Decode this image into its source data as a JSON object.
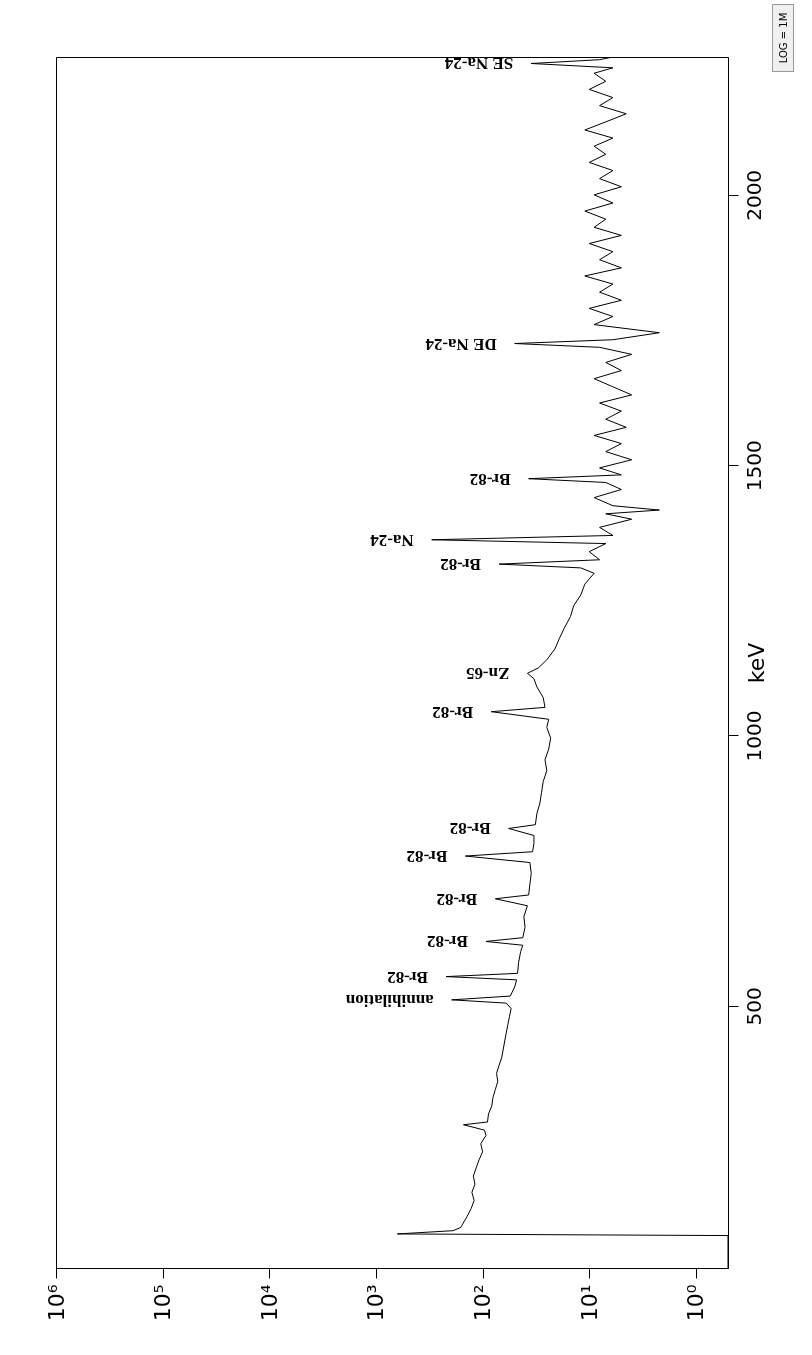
{
  "chart_data": {
    "type": "line",
    "ylabel": "keV",
    "color": "#000000",
    "log": "x",
    "grid": false,
    "ylim": [
      15,
      2255
    ],
    "yticks": [
      500,
      1000,
      1500,
      2000
    ],
    "xlim": [
      1000000,
      0.5
    ],
    "xticks": [
      {
        "value": 1000000,
        "label": "10⁶"
      },
      {
        "value": 100000,
        "label": "10⁵"
      },
      {
        "value": 10000,
        "label": "10⁴"
      },
      {
        "value": 1000,
        "label": "10³"
      },
      {
        "value": 100,
        "label": "10²"
      },
      {
        "value": 10,
        "label": "10¹"
      },
      {
        "value": 1,
        "label": "10⁰"
      }
    ],
    "values": [
      15,
      75,
      78,
      84,
      90,
      100,
      110,
      125,
      140,
      155,
      170,
      185,
      200,
      215,
      230,
      245,
      260,
      270,
      280,
      285,
      300,
      315,
      330,
      345,
      360,
      375,
      390,
      405,
      420,
      435,
      450,
      465,
      480,
      495,
      505,
      511,
      518,
      535,
      548,
      554,
      560,
      580,
      600,
      612,
      619,
      626,
      645,
      665,
      685,
      698,
      705,
      725,
      745,
      765,
      777,
      785,
      800,
      815,
      828,
      835,
      855,
      875,
      895,
      915,
      935,
      955,
      975,
      995,
      1015,
      1030,
      1044,
      1052,
      1070,
      1090,
      1105,
      1115,
      1125,
      1140,
      1160,
      1180,
      1200,
      1220,
      1240,
      1260,
      1280,
      1300,
      1310,
      1317,
      1325,
      1340,
      1355,
      1362,
      1370,
      1385,
      1400,
      1410,
      1417,
      1425,
      1440,
      1455,
      1468,
      1475,
      1482,
      1495,
      1510,
      1525,
      1540,
      1555,
      1570,
      1585,
      1600,
      1615,
      1630,
      1645,
      1660,
      1675,
      1690,
      1705,
      1718,
      1725,
      1732,
      1745,
      1760,
      1775,
      1790,
      1805,
      1820,
      1835,
      1850,
      1865,
      1880,
      1895,
      1910,
      1925,
      1940,
      1955,
      1970,
      1985,
      2000,
      2015,
      2030,
      2045,
      2060,
      2075,
      2090,
      2105,
      2120,
      2135,
      2150,
      2165,
      2180,
      2195,
      2210,
      2225,
      2235,
      2243,
      2250,
      2255
    ],
    "x": [
      0.5,
      0.5,
      630,
      190,
      160,
      150,
      140,
      128,
      120,
      126,
      118,
      122,
      115,
      108,
      100,
      104,
      93,
      96,
      151,
      90,
      88,
      82,
      80,
      76,
      72,
      74,
      70,
      66,
      64,
      62,
      60,
      58,
      56,
      54,
      60,
      195,
      55,
      50,
      48,
      220,
      47,
      46,
      44,
      42,
      93,
      42,
      40,
      41,
      38,
      76,
      37,
      36,
      35,
      36,
      145,
      34,
      33,
      33,
      57,
      32,
      31,
      29,
      28,
      27,
      25,
      26,
      24,
      23,
      25,
      24,
      83,
      26,
      27,
      31,
      33,
      38,
      30,
      25,
      21,
      19,
      17,
      15,
      14,
      12,
      11,
      9,
      12,
      70,
      8,
      10,
      7,
      300,
      6,
      8,
      4,
      7,
      2.2,
      6,
      9,
      5,
      7,
      37,
      5,
      8,
      4,
      7,
      5,
      9,
      4.5,
      7,
      5,
      8,
      4,
      6,
      9,
      5,
      7,
      4,
      8,
      50,
      6,
      2.2,
      9,
      6,
      10,
      5,
      8,
      6,
      11,
      5,
      8,
      6,
      10,
      5,
      9,
      7,
      11,
      6,
      9,
      5,
      8,
      6,
      10,
      7,
      9,
      6,
      11,
      7,
      4.5,
      8,
      6,
      10,
      7,
      9,
      6,
      35,
      8,
      6
    ],
    "annotations": [
      {
        "text": "annihilation",
        "x": 195,
        "y": 511
      },
      {
        "text": "Br-82",
        "x": 220,
        "y": 554
      },
      {
        "text": "Br-82",
        "x": 93,
        "y": 619
      },
      {
        "text": "Br-82",
        "x": 76,
        "y": 698
      },
      {
        "text": "Br-82",
        "x": 145,
        "y": 777
      },
      {
        "text": "Br-82",
        "x": 57,
        "y": 828
      },
      {
        "text": "Br-82",
        "x": 83,
        "y": 1044
      },
      {
        "text": "Zn-65",
        "x": 38,
        "y": 1115
      },
      {
        "text": "Br-82",
        "x": 70,
        "y": 1317
      },
      {
        "text": "Na-24",
        "x": 300,
        "y": 1362
      },
      {
        "text": "Br-82",
        "x": 37,
        "y": 1475
      },
      {
        "text": "DE Na-24",
        "x": 50,
        "y": 1725
      },
      {
        "text": "SE Na-24",
        "x": 35,
        "y": 2243
      },
      "LOG = 1M"
    ]
  }
}
